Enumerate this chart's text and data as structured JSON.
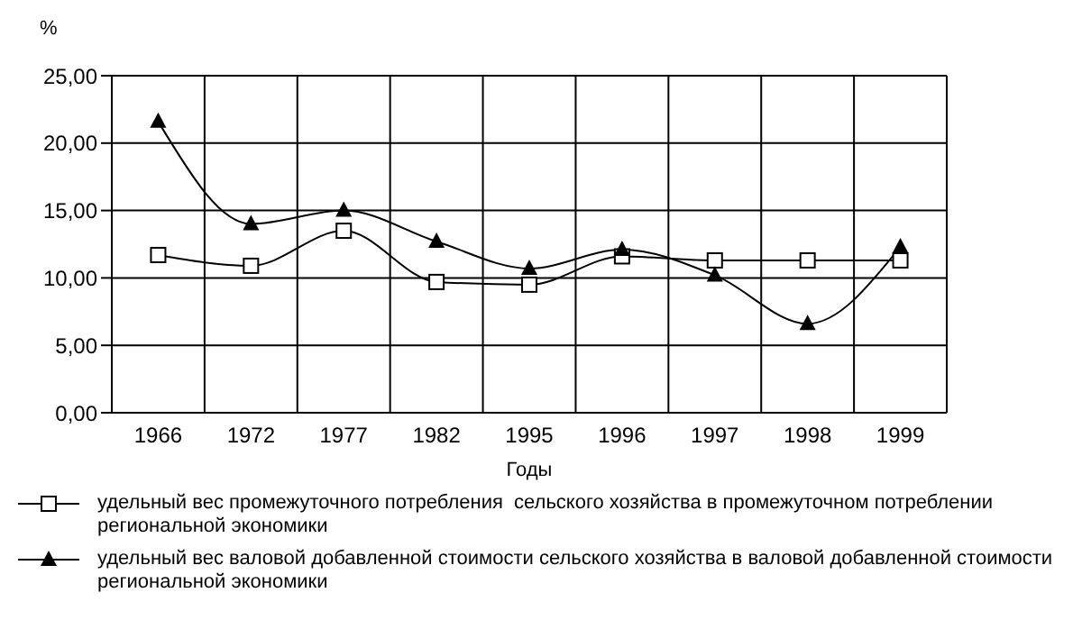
{
  "chart_data": {
    "type": "line",
    "ylabel": "%",
    "xlabel": "Годы",
    "categories": [
      "1966",
      "1972",
      "1977",
      "1982",
      "1995",
      "1996",
      "1997",
      "1998",
      "1999"
    ],
    "series": [
      {
        "name": "удельный вес промежуточного потребления  сельского хозяйства в промежуточном потреблении региональной экономики",
        "color": "#000000",
        "marker": "square",
        "values": [
          11.7,
          10.9,
          13.5,
          9.7,
          9.5,
          11.6,
          11.3,
          11.3,
          11.3
        ]
      },
      {
        "name": "удельный вес валовой добавленной стоимости сельского хозяйства в валовой добавленной стоимости региональной экономики",
        "color": "#000000",
        "marker": "triangle",
        "values": [
          21.6,
          14.0,
          15.0,
          12.7,
          10.7,
          12.1,
          10.2,
          6.6,
          12.3
        ]
      }
    ],
    "ylim": [
      0,
      25
    ],
    "yticks": [
      {
        "value": 0,
        "label": "0,00"
      },
      {
        "value": 5,
        "label": "5,00"
      },
      {
        "value": 10,
        "label": "10,00"
      },
      {
        "value": 15,
        "label": "15,00"
      },
      {
        "value": 20,
        "label": "20,00"
      },
      {
        "value": 25,
        "label": "25,00"
      }
    ],
    "grid": true,
    "legend": "bottom",
    "line_style": "solid"
  }
}
